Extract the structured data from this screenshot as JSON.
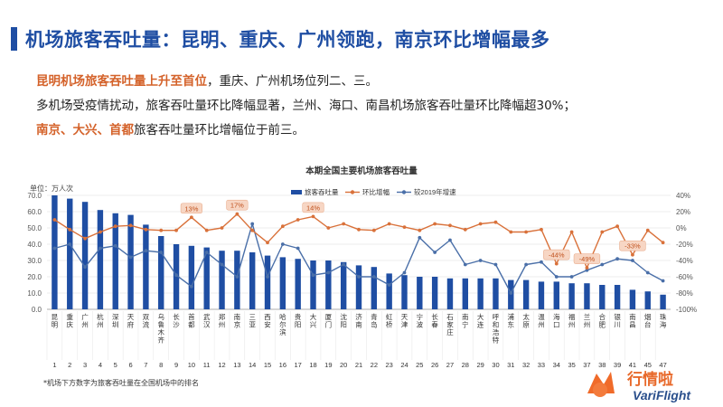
{
  "header": {
    "title": "机场旅客吞吐量：昆明、重庆、广州领跑，南京环比增幅最多"
  },
  "summary": {
    "line1_highlight": "昆明机场旅客吞吐量上升至首位",
    "line1_rest": "，重庆、广州机场位列二、三。",
    "line2": "多机场受疫情扰动，旅客吞吐量环比降幅显著，兰州、海口、南昌机场旅客吞吐量环比降幅超30%；",
    "line3_highlight": "南京、大兴、首都",
    "line3_rest": "旅客吞吐量环比增幅位于前三。"
  },
  "footnote": "*机场下方数字为旅客吞吐量在全国机场中的排名",
  "logo": {
    "text_cn": "行情啦",
    "text_en": "VariFlight"
  },
  "colors": {
    "bar": "#1f4ea3",
    "mom": "#d9713a",
    "yoy": "#4a6fa8"
  },
  "chart_data": {
    "type": "bar",
    "title": "本期全国主要机场旅客吞吐量",
    "unit_label": "单位：万人次",
    "legend": [
      "旅客吞吐量",
      "环比增幅",
      "较2019年增速"
    ],
    "legend_position": "top-center",
    "y_left_lim": [
      0,
      70
    ],
    "y_left_ticks": [
      "0.0",
      "10.0",
      "20.0",
      "30.0",
      "40.0",
      "50.0",
      "60.0",
      "70.0"
    ],
    "y_right_lim": [
      -100,
      40
    ],
    "y_right_ticks": [
      "-100%",
      "-80%",
      "-60%",
      "-40%",
      "-20%",
      "0%",
      "20%",
      "40%"
    ],
    "categories": [
      "昆明",
      "重庆",
      "广州",
      "杭州",
      "深圳",
      "天府",
      "双流",
      "乌鲁木齐",
      "长沙",
      "首都",
      "武汉",
      "郑州",
      "南京",
      "三亚",
      "西安",
      "哈尔滨",
      "贵阳",
      "大兴",
      "厦门",
      "沈阳",
      "济南",
      "青岛",
      "虹桥",
      "天津",
      "宁波",
      "长春",
      "石家庄",
      "南宁",
      "大连",
      "呼和浩特",
      "浦东",
      "太原",
      "温州",
      "海口",
      "福州",
      "兰州",
      "合肥",
      "银川",
      "南昌",
      "烟台",
      "珠海"
    ],
    "ranks": [
      "1",
      "2",
      "3",
      "4",
      "5",
      "6",
      "7",
      "8",
      "9",
      "10",
      "11",
      "12",
      "13",
      "14",
      "15",
      "16",
      "17",
      "18",
      "19",
      "20",
      "21",
      "22",
      "23",
      "24",
      "25",
      "26",
      "27",
      "28",
      "29",
      "30",
      "31",
      "32",
      "33",
      "34",
      "35",
      "37",
      "38",
      "39",
      "41",
      "45",
      "47"
    ],
    "series": [
      {
        "name": "旅客吞吐量",
        "kind": "bar",
        "axis": "left",
        "values": [
          70,
          68,
          66,
          61,
          59,
          58,
          52,
          45,
          40,
          39,
          38,
          36,
          36,
          35,
          33,
          32,
          31,
          30,
          30,
          29,
          27,
          26,
          22,
          21,
          20,
          20,
          19,
          19,
          19,
          19,
          18,
          18,
          17,
          17,
          16,
          16,
          15,
          15,
          12,
          11,
          9
        ]
      },
      {
        "name": "环比增幅",
        "kind": "line",
        "axis": "right",
        "values": [
          10,
          -2,
          -13,
          -5,
          2,
          3,
          -2,
          -3,
          -3,
          13,
          -3,
          0,
          17,
          -3,
          -18,
          2,
          10,
          14,
          0,
          5,
          -2,
          -3,
          5,
          1,
          -3,
          5,
          3,
          -2,
          5,
          7,
          -5,
          -5,
          -2,
          -44,
          -5,
          -49,
          -5,
          2,
          -33,
          -3,
          -18
        ]
      },
      {
        "name": "较2019年增速",
        "kind": "line",
        "axis": "right",
        "values": [
          -25,
          -20,
          -48,
          -25,
          -22,
          -36,
          -28,
          -30,
          -58,
          -72,
          -30,
          -45,
          -60,
          5,
          -60,
          -20,
          -25,
          -58,
          -55,
          -45,
          -60,
          -60,
          -70,
          -55,
          -12,
          -30,
          -15,
          -45,
          -40,
          -45,
          -80,
          -45,
          -42,
          -60,
          -60,
          -52,
          -45,
          -38,
          -40,
          -55,
          -65
        ]
      }
    ],
    "annotations": [
      {
        "series": "环比增幅",
        "category": "首都",
        "text": "13%"
      },
      {
        "series": "环比增幅",
        "category": "南京",
        "text": "17%"
      },
      {
        "series": "环比增幅",
        "category": "大兴",
        "text": "14%"
      },
      {
        "series": "环比增幅",
        "category": "海口",
        "text": "-44%"
      },
      {
        "series": "环比增幅",
        "category": "兰州",
        "text": "-49%"
      },
      {
        "series": "环比增幅",
        "category": "南昌",
        "text": "-33%"
      }
    ]
  }
}
